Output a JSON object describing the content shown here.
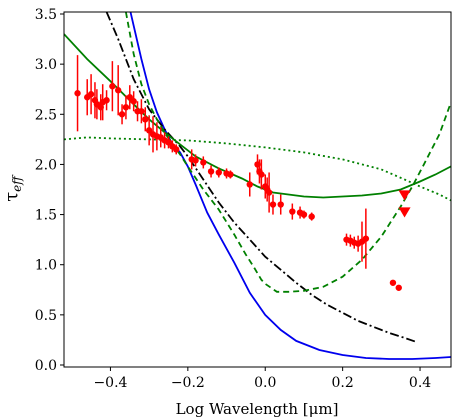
{
  "chart_data": {
    "type": "scatter",
    "xlabel": "Log Wavelength [μm]",
    "ylabel": "τ",
    "ylabel_sub": "eff",
    "xlim": [
      -0.52,
      0.48
    ],
    "ylim": [
      -0.02,
      3.52
    ],
    "xticks": [
      {
        "v": -0.4,
        "label": "−0.4"
      },
      {
        "v": -0.2,
        "label": "−0.2"
      },
      {
        "v": 0.0,
        "label": "0.0"
      },
      {
        "v": 0.2,
        "label": "0.2"
      },
      {
        "v": 0.4,
        "label": "0.4"
      }
    ],
    "yticks": [
      {
        "v": 0.0,
        "label": "0.0"
      },
      {
        "v": 0.5,
        "label": "0.5"
      },
      {
        "v": 1.0,
        "label": "1.0"
      },
      {
        "v": 1.5,
        "label": "1.5"
      },
      {
        "v": 2.0,
        "label": "2.0"
      },
      {
        "v": 2.5,
        "label": "2.5"
      },
      {
        "v": 3.0,
        "label": "3.0"
      },
      {
        "v": 3.5,
        "label": "3.5"
      }
    ],
    "grid": false,
    "series": [
      {
        "kind": "line",
        "color": "#0000ee",
        "dash": "",
        "points": [
          [
            -0.35,
            3.55
          ],
          [
            -0.32,
            3.05
          ],
          [
            -0.3,
            2.75
          ],
          [
            -0.28,
            2.52
          ],
          [
            -0.26,
            2.35
          ],
          [
            -0.24,
            2.2
          ],
          [
            -0.22,
            2.12
          ],
          [
            -0.2,
            1.98
          ],
          [
            -0.18,
            1.8
          ],
          [
            -0.15,
            1.52
          ],
          [
            -0.12,
            1.3
          ],
          [
            -0.08,
            1.02
          ],
          [
            -0.04,
            0.72
          ],
          [
            0.0,
            0.5
          ],
          [
            0.04,
            0.35
          ],
          [
            0.08,
            0.24
          ],
          [
            0.14,
            0.15
          ],
          [
            0.2,
            0.1
          ],
          [
            0.26,
            0.07
          ],
          [
            0.32,
            0.06
          ],
          [
            0.38,
            0.06
          ],
          [
            0.44,
            0.07
          ],
          [
            0.48,
            0.08
          ]
        ]
      },
      {
        "kind": "line",
        "color": "#000000",
        "dash": "9,3,2,3",
        "points": [
          [
            -0.41,
            3.52
          ],
          [
            -0.38,
            3.25
          ],
          [
            -0.34,
            2.85
          ],
          [
            -0.3,
            2.55
          ],
          [
            -0.26,
            2.35
          ],
          [
            -0.22,
            2.18
          ],
          [
            -0.2,
            2.08
          ],
          [
            -0.16,
            1.85
          ],
          [
            -0.12,
            1.62
          ],
          [
            -0.08,
            1.42
          ],
          [
            -0.04,
            1.25
          ],
          [
            0.0,
            1.08
          ],
          [
            0.04,
            0.95
          ],
          [
            0.08,
            0.82
          ],
          [
            0.12,
            0.7
          ],
          [
            0.16,
            0.6
          ],
          [
            0.2,
            0.52
          ],
          [
            0.24,
            0.44
          ],
          [
            0.28,
            0.38
          ],
          [
            0.32,
            0.32
          ],
          [
            0.36,
            0.27
          ],
          [
            0.39,
            0.23
          ]
        ]
      },
      {
        "kind": "line",
        "color": "#008000",
        "dash": "6,4",
        "points": [
          [
            -0.36,
            3.52
          ],
          [
            -0.34,
            3.1
          ],
          [
            -0.32,
            2.8
          ],
          [
            -0.3,
            2.6
          ],
          [
            -0.28,
            2.45
          ],
          [
            -0.26,
            2.32
          ],
          [
            -0.24,
            2.2
          ],
          [
            -0.22,
            2.1
          ],
          [
            -0.2,
            1.98
          ],
          [
            -0.16,
            1.75
          ],
          [
            -0.12,
            1.55
          ],
          [
            -0.08,
            1.3
          ],
          [
            -0.05,
            1.1
          ],
          [
            -0.03,
            0.98
          ],
          [
            -0.01,
            0.85
          ],
          [
            0.0,
            0.81
          ],
          [
            0.03,
            0.73
          ],
          [
            0.06,
            0.73
          ],
          [
            0.1,
            0.74
          ],
          [
            0.15,
            0.78
          ],
          [
            0.2,
            0.88
          ],
          [
            0.25,
            1.05
          ],
          [
            0.3,
            1.28
          ],
          [
            0.35,
            1.58
          ],
          [
            0.38,
            1.78
          ],
          [
            0.41,
            2.0
          ],
          [
            0.45,
            2.3
          ],
          [
            0.48,
            2.62
          ]
        ]
      },
      {
        "kind": "line",
        "color": "#008000",
        "dash": "",
        "points": [
          [
            -0.52,
            3.3
          ],
          [
            -0.46,
            3.05
          ],
          [
            -0.4,
            2.83
          ],
          [
            -0.34,
            2.6
          ],
          [
            -0.3,
            2.45
          ],
          [
            -0.26,
            2.32
          ],
          [
            -0.22,
            2.2
          ],
          [
            -0.18,
            2.08
          ],
          [
            -0.12,
            1.96
          ],
          [
            -0.06,
            1.86
          ],
          [
            -0.02,
            1.78
          ],
          [
            0.02,
            1.72
          ],
          [
            0.1,
            1.68
          ],
          [
            0.15,
            1.67
          ],
          [
            0.2,
            1.68
          ],
          [
            0.25,
            1.69
          ],
          [
            0.3,
            1.71
          ],
          [
            0.35,
            1.75
          ],
          [
            0.4,
            1.83
          ],
          [
            0.44,
            1.9
          ],
          [
            0.48,
            1.98
          ]
        ]
      },
      {
        "kind": "line",
        "color": "#008000",
        "dash": "2,3",
        "points": [
          [
            -0.52,
            2.25
          ],
          [
            -0.46,
            2.27
          ],
          [
            -0.4,
            2.26
          ],
          [
            -0.3,
            2.25
          ],
          [
            -0.2,
            2.24
          ],
          [
            -0.1,
            2.21
          ],
          [
            0.0,
            2.17
          ],
          [
            0.1,
            2.12
          ],
          [
            0.2,
            2.05
          ],
          [
            0.3,
            1.95
          ],
          [
            0.36,
            1.85
          ],
          [
            0.4,
            1.78
          ],
          [
            0.45,
            1.7
          ],
          [
            0.48,
            1.64
          ]
        ]
      },
      {
        "kind": "points",
        "color": "#ff0000",
        "points": [
          [
            -0.485,
            2.71,
            0.38
          ],
          [
            -0.46,
            2.67,
            0.18
          ],
          [
            -0.45,
            2.7,
            0.2
          ],
          [
            -0.44,
            2.64,
            0.18
          ],
          [
            -0.435,
            2.6,
            0.15
          ],
          [
            -0.425,
            2.57,
            0.13
          ],
          [
            -0.42,
            2.62,
            0.18
          ],
          [
            -0.41,
            2.64,
            0.1
          ],
          [
            -0.395,
            2.78,
            0.25
          ],
          [
            -0.38,
            2.74,
            0.25
          ],
          [
            -0.37,
            2.5,
            0.1
          ],
          [
            -0.36,
            2.57,
            0.12
          ],
          [
            -0.35,
            2.67,
            0.12
          ],
          [
            -0.34,
            2.63,
            0.1
          ],
          [
            -0.33,
            2.53,
            0.1
          ],
          [
            -0.32,
            2.53,
            0.12
          ],
          [
            -0.31,
            2.45,
            0.12
          ],
          [
            -0.3,
            2.34,
            0.15
          ],
          [
            -0.29,
            2.3,
            0.18
          ],
          [
            -0.28,
            2.28,
            0.14
          ],
          [
            -0.27,
            2.27,
            0.1
          ],
          [
            -0.26,
            2.24,
            0.08
          ],
          [
            -0.25,
            2.22,
            0.06
          ],
          [
            -0.24,
            2.18,
            0.06
          ],
          [
            -0.23,
            2.15,
            0.05
          ],
          [
            -0.19,
            2.05,
            0.1
          ],
          [
            -0.18,
            2.04,
            0.06
          ],
          [
            -0.16,
            2.02,
            0.06
          ],
          [
            -0.14,
            1.93,
            0.06
          ],
          [
            -0.12,
            1.92,
            0.05
          ],
          [
            -0.1,
            1.91,
            0.05
          ],
          [
            -0.09,
            1.9,
            0.04
          ],
          [
            -0.04,
            1.8,
            0.12
          ],
          [
            -0.02,
            2.0,
            0.1
          ],
          [
            -0.015,
            1.93,
            0.12
          ],
          [
            -0.01,
            1.9,
            0.15
          ],
          [
            0.0,
            1.78,
            0.12
          ],
          [
            0.005,
            1.75,
            0.12
          ],
          [
            0.01,
            1.72,
            0.2
          ],
          [
            0.02,
            1.6,
            0.1
          ],
          [
            0.04,
            1.6,
            0.1
          ],
          [
            0.07,
            1.53,
            0.08
          ],
          [
            0.09,
            1.52,
            0.06
          ],
          [
            0.1,
            1.5,
            0.04
          ],
          [
            0.12,
            1.48,
            0.04
          ],
          [
            0.21,
            1.25,
            0.06
          ],
          [
            0.22,
            1.24,
            0.06
          ],
          [
            0.23,
            1.22,
            0.06
          ],
          [
            0.24,
            1.21,
            0.08
          ],
          [
            0.25,
            1.23,
            0.2
          ],
          [
            0.26,
            1.26,
            0.3
          ],
          [
            0.33,
            0.82,
            0
          ],
          [
            0.345,
            0.77,
            0
          ]
        ]
      },
      {
        "kind": "markers",
        "color": "#ff0000",
        "marker": "triangle-down",
        "points": [
          [
            0.36,
            1.7
          ],
          [
            0.36,
            1.53
          ]
        ]
      }
    ]
  }
}
